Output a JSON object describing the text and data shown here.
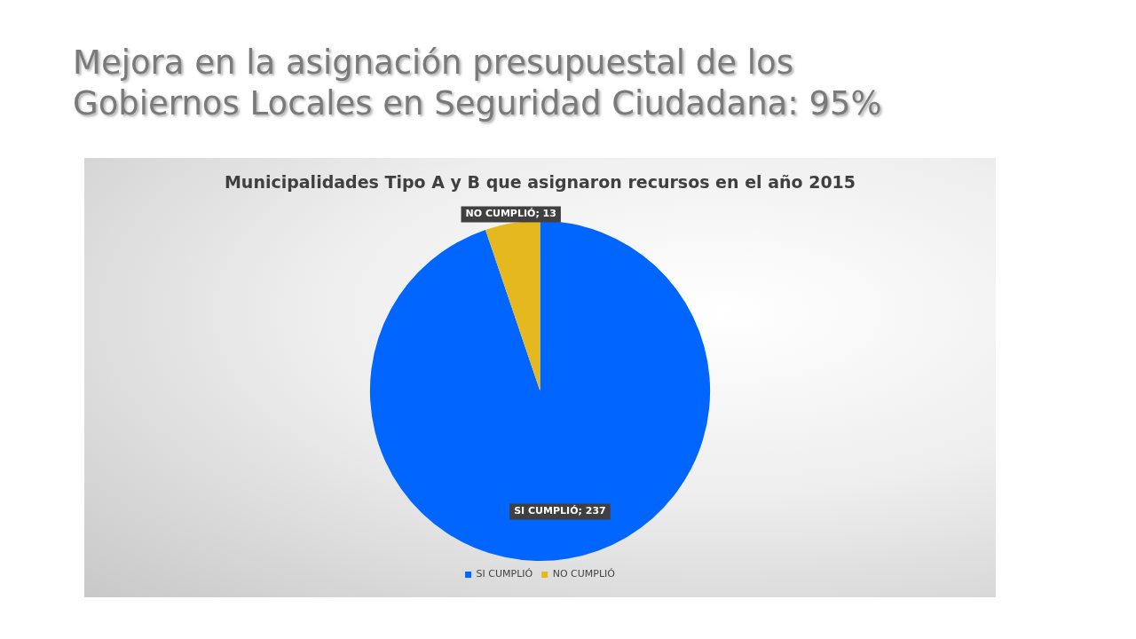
{
  "chart_data": {
    "type": "pie",
    "title": "Mejora en la asignación presupuestal de los Gobiernos Locales en Seguridad Ciudadana: 95%",
    "subtitle": "Municipalidades Tipo A y B que asignaron recursos en el año 2015",
    "categories": [
      "SI CUMPLIÓ",
      "NO CUMPLIÓ"
    ],
    "values": [
      237,
      13
    ],
    "colors": [
      "#0066ff",
      "#e6b820"
    ],
    "value_labels": [
      "SI CUMPLIÓ; 237",
      "NO CUMPLIÓ; 13"
    ],
    "legend": "bottom"
  }
}
